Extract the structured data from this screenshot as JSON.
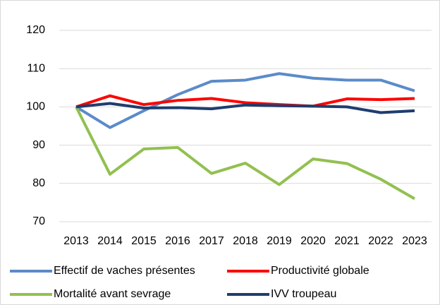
{
  "chart_data": {
    "type": "line",
    "categories": [
      "2013",
      "2014",
      "2015",
      "2016",
      "2017",
      "2018",
      "2019",
      "2020",
      "2021",
      "2022",
      "2023"
    ],
    "series": [
      {
        "name": "Effectif de vaches présentes",
        "color": "#5b8bc9",
        "values": [
          100,
          94.6,
          99,
          103.2,
          106.7,
          107,
          108.7,
          107.5,
          107,
          107,
          104.2
        ]
      },
      {
        "name": "Productivité globale",
        "color": "#ff0000",
        "values": [
          100,
          102.9,
          100.6,
          101.7,
          102.2,
          101.1,
          100.6,
          100.2,
          102.1,
          101.9,
          102.2
        ]
      },
      {
        "name": "Mortalité avant sevrage",
        "color": "#92c050",
        "values": [
          100,
          82.4,
          89,
          89.4,
          82.6,
          85.3,
          79.7,
          86.4,
          85.2,
          81.1,
          76
        ]
      },
      {
        "name": "IVV troupeau",
        "color": "#1f3d6e",
        "values": [
          100,
          100.9,
          99.7,
          99.8,
          99.5,
          100.5,
          100.3,
          100.2,
          100,
          98.5,
          99
        ]
      }
    ],
    "ylim": [
      70,
      120
    ],
    "yticks": [
      70,
      80,
      90,
      100,
      110,
      120
    ],
    "grid": true,
    "legend": "bottom"
  }
}
